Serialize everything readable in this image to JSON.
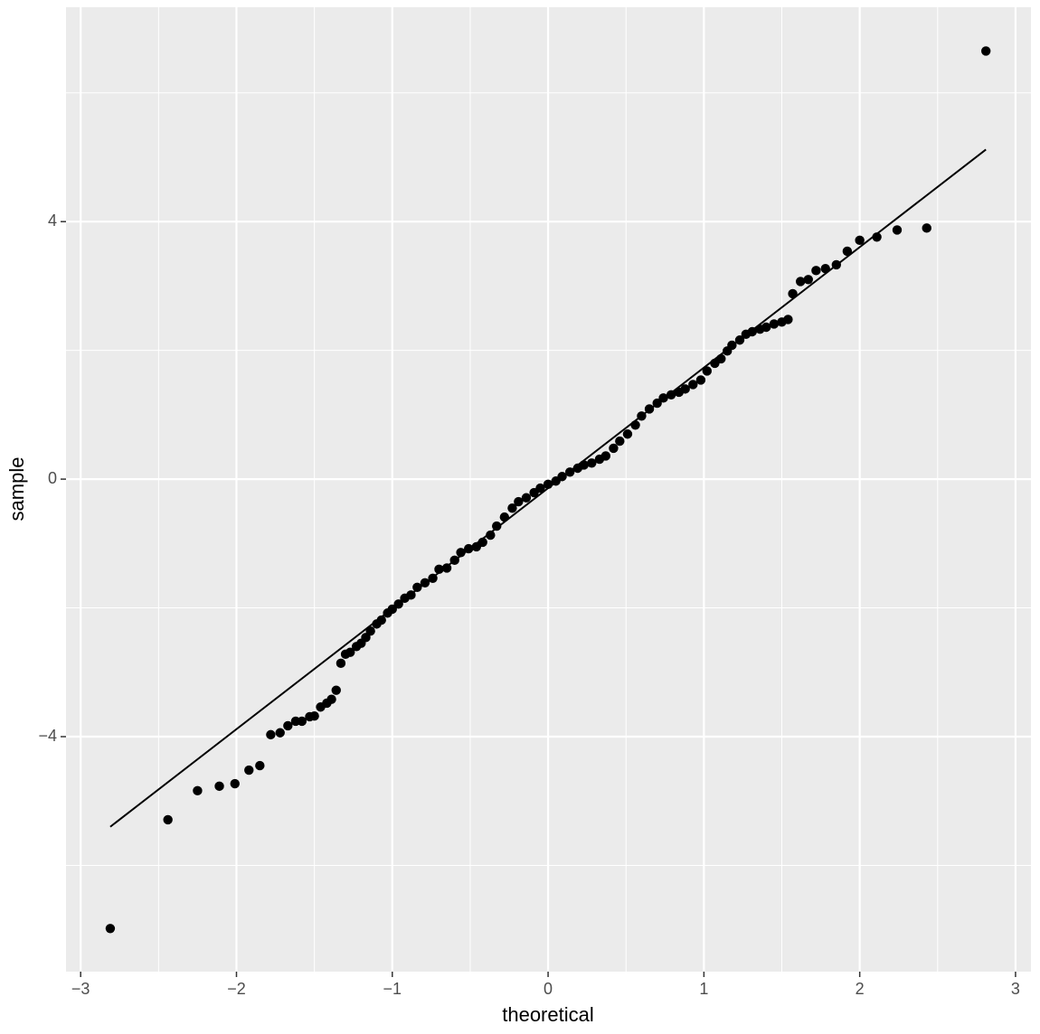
{
  "chart_data": {
    "type": "scatter",
    "x_label": "theoretical",
    "y_label": "sample",
    "x": [
      -2.81,
      -2.44,
      -2.25,
      -2.11,
      -2.01,
      -1.92,
      -1.85,
      -1.78,
      -1.72,
      -1.67,
      -1.62,
      -1.58,
      -1.53,
      -1.5,
      -1.46,
      -1.42,
      -1.39,
      -1.36,
      -1.33,
      -1.3,
      -1.27,
      -1.23,
      -1.2,
      -1.17,
      -1.14,
      -1.1,
      -1.07,
      -1.03,
      -1.0,
      -0.96,
      -0.92,
      -0.88,
      -0.84,
      -0.79,
      -0.74,
      -0.7,
      -0.65,
      -0.6,
      -0.56,
      -0.51,
      -0.46,
      -0.42,
      -0.37,
      -0.33,
      -0.28,
      -0.23,
      -0.19,
      -0.14,
      -0.09,
      -0.05,
      0,
      0.05,
      0.09,
      0.14,
      0.19,
      0.23,
      0.28,
      0.33,
      0.37,
      0.42,
      0.46,
      0.51,
      0.56,
      0.6,
      0.65,
      0.7,
      0.74,
      0.79,
      0.84,
      0.88,
      0.93,
      0.98,
      1.02,
      1.07,
      1.11,
      1.15,
      1.18,
      1.23,
      1.27,
      1.31,
      1.36,
      1.4,
      1.45,
      1.5,
      1.54,
      1.57,
      1.62,
      1.67,
      1.72,
      1.78,
      1.85,
      1.92,
      2.0,
      2.11,
      2.24,
      2.43,
      2.81
    ],
    "values": [
      -6.98,
      -5.29,
      -4.84,
      -4.77,
      -4.73,
      -4.52,
      -4.45,
      -3.97,
      -3.94,
      -3.83,
      -3.76,
      -3.76,
      -3.69,
      -3.68,
      -3.54,
      -3.48,
      -3.42,
      -3.28,
      -2.86,
      -2.72,
      -2.69,
      -2.6,
      -2.55,
      -2.46,
      -2.36,
      -2.25,
      -2.19,
      -2.08,
      -2.02,
      -1.94,
      -1.85,
      -1.8,
      -1.68,
      -1.61,
      -1.54,
      -1.4,
      -1.38,
      -1.26,
      -1.14,
      -1.08,
      -1.05,
      -0.98,
      -0.87,
      -0.73,
      -0.59,
      -0.45,
      -0.35,
      -0.29,
      -0.21,
      -0.14,
      -0.08,
      -0.03,
      0.04,
      0.11,
      0.17,
      0.22,
      0.25,
      0.31,
      0.36,
      0.48,
      0.59,
      0.7,
      0.84,
      0.98,
      1.09,
      1.18,
      1.26,
      1.31,
      1.35,
      1.4,
      1.47,
      1.54,
      1.68,
      1.8,
      1.87,
      1.99,
      2.08,
      2.16,
      2.25,
      2.29,
      2.33,
      2.36,
      2.41,
      2.44,
      2.48,
      2.88,
      3.07,
      3.1,
      3.24,
      3.27,
      3.33,
      3.54,
      3.71,
      3.76,
      3.87,
      3.9,
      6.65
    ],
    "color": "#000000",
    "reference_line": {
      "x": [
        -2.81,
        2.81
      ],
      "y": [
        -5.4,
        5.12
      ],
      "color": "#000000"
    },
    "xlim": [
      -3.094,
      3.099
    ],
    "ylim": [
      -7.65,
      7.33
    ],
    "xticks": [
      {
        "value": -3,
        "label": "−3"
      },
      {
        "value": -2,
        "label": "−2"
      },
      {
        "value": -1,
        "label": "−1"
      },
      0,
      1,
      2,
      3
    ],
    "yticks": [
      {
        "value": -4,
        "label": "−4"
      },
      0,
      4
    ],
    "x_minor_grid": [
      -2.5,
      -1.5,
      -0.5,
      0.5,
      1.5,
      2.5
    ],
    "y_minor_grid": [
      -6,
      -2,
      2,
      6
    ],
    "grid": true
  }
}
